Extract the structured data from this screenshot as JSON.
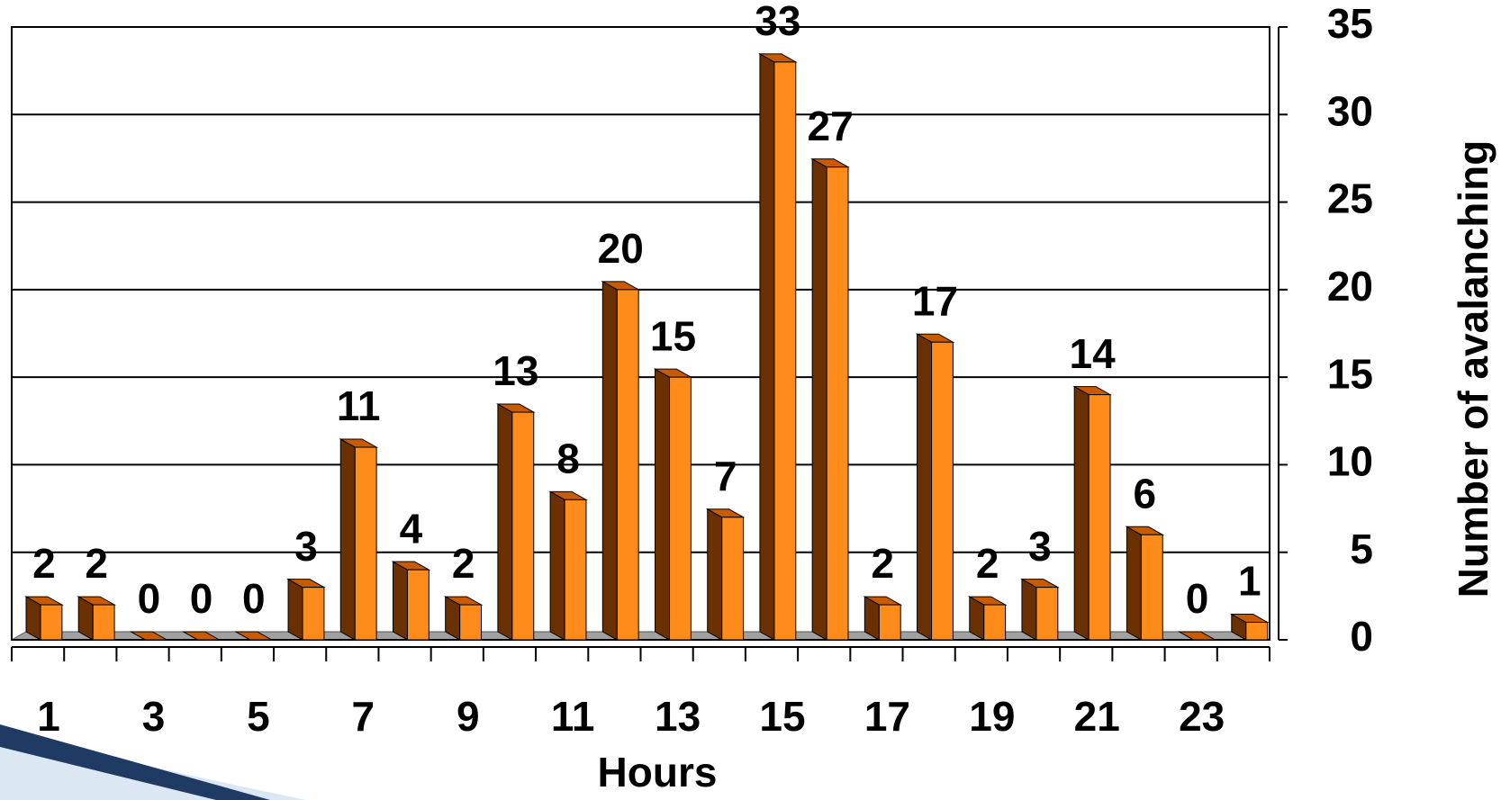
{
  "chart_data": {
    "type": "bar",
    "x_label": "Hours",
    "y_label": "Number of avalanching",
    "categories": [
      "1",
      null,
      "3",
      null,
      "5",
      null,
      "7",
      null,
      "9",
      null,
      "11",
      null,
      "13",
      null,
      "15",
      null,
      "17",
      null,
      "19",
      null,
      "21",
      null,
      "23",
      null
    ],
    "values": [
      2,
      2,
      0,
      0,
      0,
      3,
      11,
      4,
      2,
      13,
      8,
      20,
      15,
      7,
      33,
      27,
      2,
      17,
      2,
      3,
      14,
      6,
      0,
      1
    ],
    "color": "#ff8c1a",
    "ylim": [
      0,
      35
    ],
    "yticks": [
      0,
      5,
      10,
      15,
      20,
      25,
      30,
      35
    ],
    "grid": true
  }
}
